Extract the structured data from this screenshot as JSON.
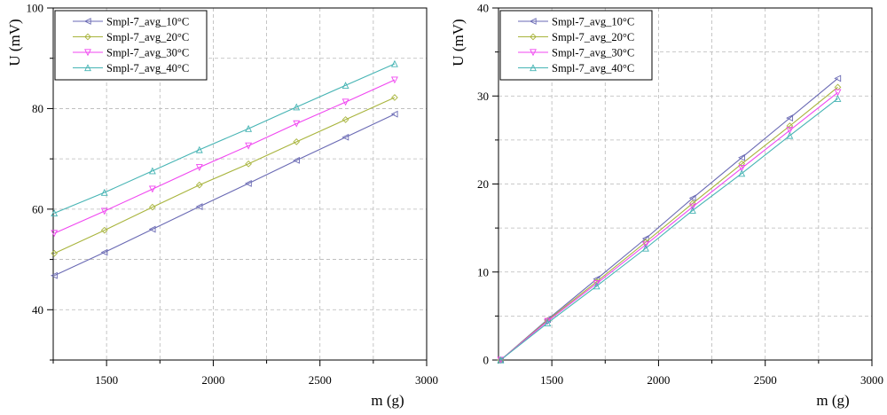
{
  "chart_data": [
    {
      "type": "line",
      "xlabel": "m (g)",
      "ylabel": "U (mV)",
      "xlim": [
        1250,
        3000
      ],
      "ylim": [
        30,
        100
      ],
      "xticks": [
        1500,
        2000,
        2500,
        3000
      ],
      "yticks": [
        40,
        60,
        80,
        100
      ],
      "grid": true,
      "legend_position": "top-left",
      "x": [
        1255,
        1490,
        1715,
        1935,
        2165,
        2390,
        2620,
        2850
      ],
      "series": [
        {
          "name": "Smpl-7_avg_10°C",
          "color": "#6a6ab4",
          "marker": "left-triangle",
          "values": [
            46.8,
            51.4,
            56.0,
            60.5,
            65.1,
            69.7,
            74.3,
            78.9
          ]
        },
        {
          "name": "Smpl-7_avg_20°C",
          "color": "#a8b43c",
          "marker": "diamond",
          "values": [
            51.2,
            55.8,
            60.4,
            64.8,
            69.0,
            73.4,
            77.8,
            82.2
          ]
        },
        {
          "name": "Smpl-7_avg_30°C",
          "color": "#f046f0",
          "marker": "down-triangle",
          "values": [
            55.2,
            59.6,
            64.0,
            68.3,
            72.6,
            77.0,
            81.3,
            85.7
          ]
        },
        {
          "name": "Smpl-7_avg_40°C",
          "color": "#46b4b4",
          "marker": "up-triangle",
          "values": [
            59.2,
            63.3,
            67.6,
            71.8,
            76.0,
            80.3,
            84.6,
            88.9
          ]
        }
      ]
    },
    {
      "type": "line",
      "xlabel": "m (g)",
      "ylabel": "U (mV)",
      "xlim": [
        1250,
        3000
      ],
      "ylim": [
        0,
        40
      ],
      "xticks": [
        1500,
        2000,
        2500,
        3000
      ],
      "yticks": [
        0,
        10,
        20,
        30,
        40
      ],
      "grid": true,
      "legend_position": "top-left",
      "x": [
        1260,
        1480,
        1710,
        1940,
        2160,
        2390,
        2615,
        2840
      ],
      "series": [
        {
          "name": "Smpl-7_avg_10°C",
          "color": "#6a6ab4",
          "marker": "left-triangle",
          "values": [
            0.0,
            4.6,
            9.2,
            13.8,
            18.4,
            23.0,
            27.5,
            32.0
          ]
        },
        {
          "name": "Smpl-7_avg_20°C",
          "color": "#a8b43c",
          "marker": "diamond",
          "values": [
            0.0,
            4.5,
            8.9,
            13.4,
            17.8,
            22.3,
            26.6,
            31.0
          ]
        },
        {
          "name": "Smpl-7_avg_30°C",
          "color": "#f046f0",
          "marker": "down-triangle",
          "values": [
            0.0,
            4.4,
            8.7,
            13.1,
            17.4,
            21.8,
            26.1,
            30.4
          ]
        },
        {
          "name": "Smpl-7_avg_40°C",
          "color": "#46b4b4",
          "marker": "up-triangle",
          "values": [
            0.0,
            4.2,
            8.4,
            12.7,
            17.0,
            21.2,
            25.5,
            29.7
          ]
        }
      ]
    }
  ]
}
